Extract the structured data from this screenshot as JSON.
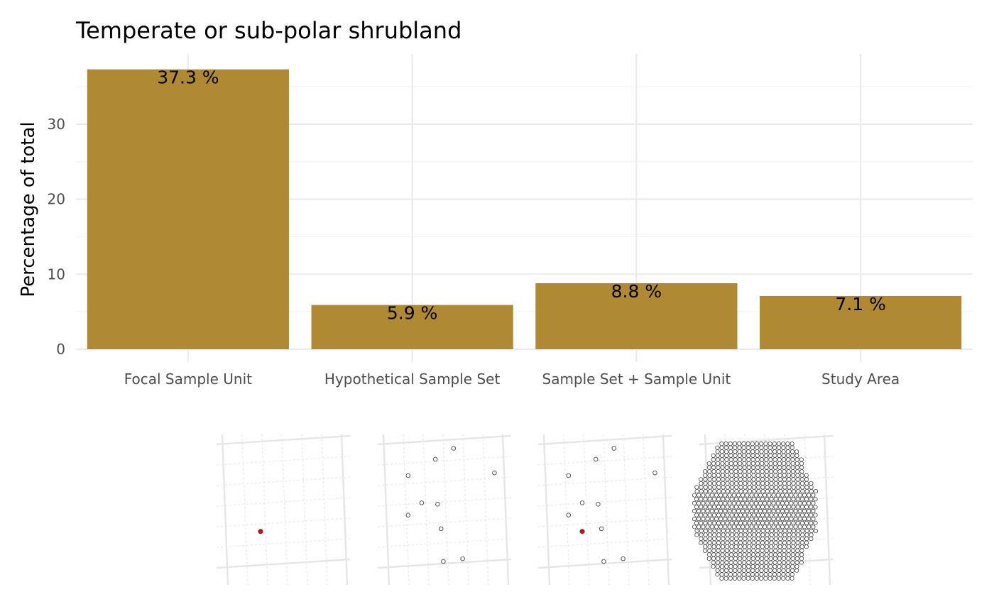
{
  "chart_data": {
    "type": "bar",
    "title": "Temperate or sub-polar shrubland",
    "xlabel": "",
    "ylabel": "Percentage of total",
    "categories": [
      "Focal Sample Unit",
      "Hypothetical Sample Set",
      "Sample Set + Sample Unit",
      "Study Area"
    ],
    "values": [
      37.3,
      5.9,
      8.8,
      7.1
    ],
    "value_labels": [
      "37.3 %",
      "5.9 %",
      "8.8 %",
      "7.1 %"
    ],
    "yticks": [
      0,
      10,
      20,
      30
    ],
    "ylim": [
      0,
      37.3
    ],
    "grid": true,
    "bar_color": "#b08933"
  },
  "insets": {
    "focal_point_color": "#e00000",
    "panels": [
      "focal-unit-map",
      "sample-set-map",
      "sample-set-plus-unit-map",
      "study-area-map"
    ]
  }
}
